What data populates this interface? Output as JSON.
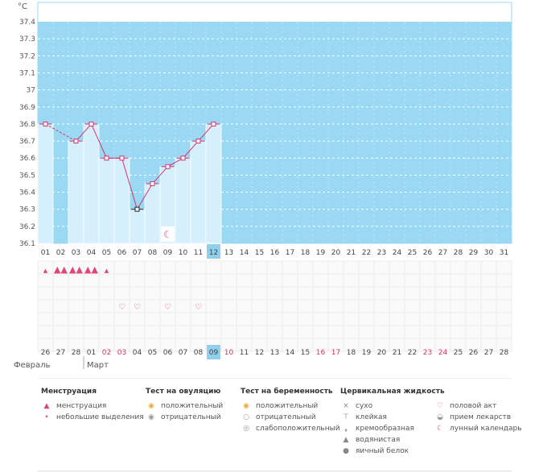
{
  "chart_data": {
    "type": "line",
    "y_unit": "°C",
    "ylim": [
      36.1,
      37.4
    ],
    "y_ticks": [
      "37.4",
      "37.3",
      "37.2",
      "37.1",
      "37",
      "36.9",
      "36.8",
      "36.7",
      "36.6",
      "36.5",
      "36.4",
      "36.3",
      "36.2",
      "36.1"
    ],
    "cycle_days": [
      "01",
      "02",
      "03",
      "04",
      "05",
      "06",
      "07",
      "08",
      "09",
      "10",
      "11",
      "12",
      "13",
      "14",
      "15",
      "16",
      "17",
      "18",
      "19",
      "20",
      "21",
      "22",
      "23",
      "24",
      "25",
      "26",
      "27",
      "28",
      "29",
      "30",
      "31"
    ],
    "current_day": "12",
    "temperatures": [
      36.8,
      null,
      36.7,
      36.8,
      36.6,
      36.6,
      36.3,
      36.45,
      36.55,
      36.6,
      36.7,
      36.8
    ],
    "marked_day": "07",
    "calendar_dates": [
      "26",
      "27",
      "28",
      "01",
      "02",
      "03",
      "04",
      "05",
      "06",
      "07",
      "08",
      "09",
      "10",
      "11",
      "12",
      "13",
      "14",
      "15",
      "16",
      "17",
      "18",
      "19",
      "20",
      "21",
      "22",
      "23",
      "24",
      "25",
      "26",
      "27",
      "28"
    ],
    "highlighted_dates": [
      "02",
      "03",
      "10",
      "16",
      "17",
      "23",
      "24"
    ],
    "today_date": "09",
    "month_prev": "Февраль",
    "month_next": "Март",
    "menstruation_rows": [
      {
        "day": "01",
        "type": "light"
      },
      {
        "day": "02",
        "type": "full"
      },
      {
        "day": "03",
        "type": "full"
      },
      {
        "day": "04",
        "type": "full"
      },
      {
        "day": "05",
        "type": "light"
      }
    ],
    "intercourse_days": [
      "06",
      "07",
      "09",
      "11"
    ],
    "moon_day": "09"
  },
  "legend": {
    "menstruation": {
      "title": "Менструация",
      "items": [
        "менструация",
        "небольшие выделения"
      ]
    },
    "ovulation": {
      "title": "Тест на овуляцию",
      "items": [
        "положительный",
        "отрицательный"
      ]
    },
    "pregnancy": {
      "title": "Тест на беременность",
      "items": [
        "положительный",
        "отрицательный",
        "слабоположительный"
      ]
    },
    "cervical": {
      "title": "Цервикальная жидкость",
      "items": [
        "сухо",
        "клейкая",
        "кремообразная",
        "водянистая",
        "яичный белок"
      ]
    },
    "other": {
      "items": [
        "половой акт",
        "прием лекарств",
        "лунный календарь"
      ]
    }
  },
  "colors": {
    "plot_bg": "#9ad8f3",
    "bar": "#d6effc",
    "line": "#d6336c",
    "today": "#8fd0ee"
  }
}
